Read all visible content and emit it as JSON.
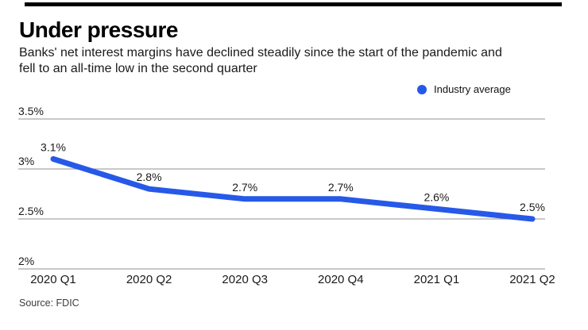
{
  "header": {
    "title": "Under pressure",
    "subtitle_lines": [
      "Banks' net interest margins have declined steadily since the start of the pandemic and",
      "fell to an all-time low in the second quarter"
    ]
  },
  "legend": {
    "label": "Industry average"
  },
  "source_note": "Source: FDIC",
  "colors": {
    "accent_blue": "#2659e8",
    "grid_gray": "#a7a7a7",
    "top_rule_black": "#000000",
    "text_dark": "#191919"
  },
  "chart_data": {
    "type": "line",
    "title": "Under pressure",
    "categories": [
      "2020 Q1",
      "2020 Q2",
      "2020 Q3",
      "2020 Q4",
      "2021 Q1",
      "2021 Q2"
    ],
    "series": [
      {
        "name": "Industry average",
        "values": [
          3.1,
          2.8,
          2.7,
          2.7,
          2.6,
          2.5
        ],
        "color": "#2659e8"
      }
    ],
    "data_labels": [
      "3.1%",
      "2.8%",
      "2.7%",
      "2.7%",
      "2.6%",
      "2.5%"
    ],
    "yticks": [
      {
        "value": 3.5,
        "label": "3.5%"
      },
      {
        "value": 3.0,
        "label": "3%"
      },
      {
        "value": 2.5,
        "label": "2.5%"
      },
      {
        "value": 2.0,
        "label": "2%"
      }
    ],
    "ylim": [
      2.0,
      3.5
    ],
    "xlabel": "",
    "ylabel": "",
    "grid": true,
    "legend_position": "top-right"
  }
}
